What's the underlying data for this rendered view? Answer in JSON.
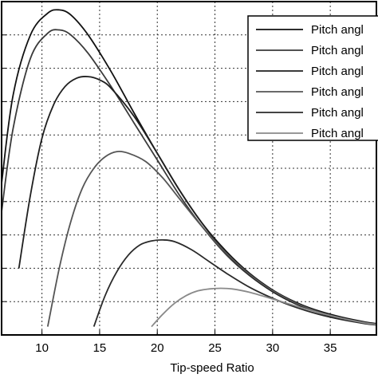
{
  "chart_data": {
    "type": "line",
    "xlabel": "Tip-speed Ratio",
    "ylabel": "",
    "title": "",
    "xlim": [
      6.5,
      39
    ],
    "ylim": [
      0,
      1
    ],
    "grid": true,
    "xticks": [
      10,
      15,
      20,
      25,
      30,
      35
    ],
    "legend_placement": "top-right",
    "series": [
      {
        "name": "Pitch angl",
        "color": "#111111",
        "x": [
          6.5,
          7.5,
          9,
          10.5,
          11.5,
          12.5,
          14,
          16,
          18,
          20,
          22,
          24,
          26,
          28,
          30,
          32,
          34,
          36,
          38,
          39
        ],
        "y": [
          0.455,
          0.72,
          0.9,
          0.965,
          0.975,
          0.96,
          0.9,
          0.79,
          0.665,
          0.545,
          0.43,
          0.33,
          0.25,
          0.185,
          0.135,
          0.098,
          0.072,
          0.053,
          0.039,
          0.034
        ]
      },
      {
        "name": "Pitch angl",
        "color": "#3a3a3a",
        "x": [
          6.5,
          7.5,
          9,
          10.5,
          11.5,
          12.5,
          14,
          16,
          18,
          20,
          22,
          24,
          26,
          28,
          30,
          32,
          34,
          36,
          38,
          39
        ],
        "y": [
          0.37,
          0.62,
          0.83,
          0.905,
          0.915,
          0.9,
          0.845,
          0.745,
          0.635,
          0.525,
          0.415,
          0.32,
          0.24,
          0.178,
          0.13,
          0.094,
          0.069,
          0.051,
          0.037,
          0.032
        ]
      },
      {
        "name": "Pitch angl",
        "color": "#1f1f1f",
        "x": [
          8,
          9,
          10,
          11,
          12,
          13,
          14,
          15,
          16,
          18,
          20,
          22,
          24,
          26,
          28,
          30,
          32,
          34,
          36,
          38,
          39
        ],
        "y": [
          0.2,
          0.42,
          0.59,
          0.69,
          0.745,
          0.77,
          0.775,
          0.765,
          0.74,
          0.655,
          0.545,
          0.43,
          0.33,
          0.245,
          0.18,
          0.13,
          0.093,
          0.067,
          0.049,
          0.036,
          0.031
        ]
      },
      {
        "name": "Pitch angl",
        "color": "#555555",
        "x": [
          10.5,
          11.5,
          12.5,
          13.5,
          14.5,
          15.5,
          16.5,
          17.5,
          19,
          20.5,
          22,
          24,
          26,
          28,
          30,
          32,
          34,
          36,
          38,
          39
        ],
        "y": [
          0.025,
          0.2,
          0.34,
          0.44,
          0.5,
          0.535,
          0.55,
          0.545,
          0.52,
          0.47,
          0.405,
          0.32,
          0.245,
          0.182,
          0.133,
          0.096,
          0.069,
          0.05,
          0.037,
          0.032
        ]
      },
      {
        "name": "Pitch angl",
        "color": "#2a2a2a",
        "x": [
          14.5,
          15.5,
          16.5,
          17.5,
          18.5,
          19.5,
          20.5,
          21.5,
          23,
          24.5,
          26,
          28,
          30,
          32,
          34,
          36,
          38,
          39
        ],
        "y": [
          0.025,
          0.12,
          0.19,
          0.24,
          0.27,
          0.282,
          0.285,
          0.28,
          0.255,
          0.22,
          0.185,
          0.143,
          0.11,
          0.083,
          0.062,
          0.046,
          0.034,
          0.03
        ]
      },
      {
        "name": "Pitch angl",
        "color": "#8a8a8a",
        "x": [
          19.5,
          20.5,
          21.5,
          22.5,
          23.5,
          24.5,
          25.5,
          26.5,
          28,
          30,
          32,
          34,
          36,
          38,
          39
        ],
        "y": [
          0.025,
          0.063,
          0.095,
          0.118,
          0.132,
          0.138,
          0.14,
          0.138,
          0.128,
          0.108,
          0.087,
          0.067,
          0.05,
          0.036,
          0.031
        ]
      }
    ]
  }
}
